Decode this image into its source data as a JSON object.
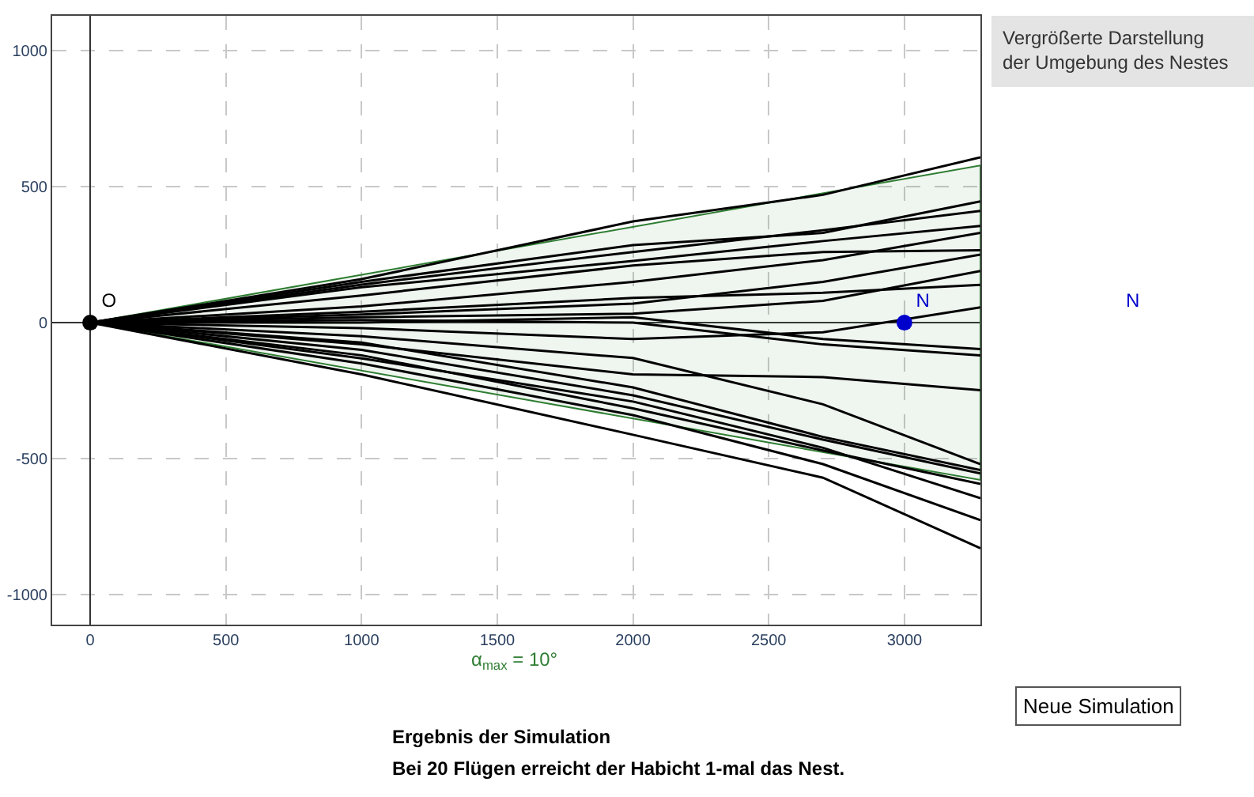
{
  "chart_data": [
    {
      "type": "line",
      "xlim": [
        -140,
        3280
      ],
      "ylim": [
        -1110,
        1128
      ],
      "xticks": [
        0,
        500,
        1000,
        1500,
        2000,
        2500,
        3000
      ],
      "yticks": [
        -1000,
        -500,
        0,
        500,
        1000
      ],
      "grid": true,
      "marker": "none",
      "line_style": "solid",
      "x": [
        0,
        1000,
        2000,
        2700,
        3280
      ],
      "series": [
        {
          "type": "line",
          "color": "#2e7d32",
          "x": [
            0,
            3280
          ],
          "values": [
            null,
            null
          ],
          "lower": [
            0,
            -578
          ],
          "upper": [
            0,
            578
          ]
        },
        {
          "color": "#000000",
          "values": [
            0,
            160,
            372,
            470,
            608
          ]
        },
        {
          "color": "#000000",
          "values": [
            0,
            150,
            285,
            330,
            446
          ]
        },
        {
          "color": "#000000",
          "values": [
            0,
            140,
            260,
            340,
            411
          ]
        },
        {
          "color": "#000000",
          "values": [
            0,
            130,
            227,
            300,
            356
          ]
        },
        {
          "color": "#000000",
          "values": [
            0,
            100,
            210,
            260,
            266
          ]
        },
        {
          "color": "#000000",
          "values": [
            0,
            60,
            150,
            230,
            330
          ]
        },
        {
          "color": "#000000",
          "values": [
            0,
            40,
            91,
            110,
            139
          ]
        },
        {
          "color": "#000000",
          "values": [
            0,
            20,
            33,
            80,
            190
          ]
        },
        {
          "color": "#000000",
          "values": [
            0,
            -20,
            -60,
            -35,
            56
          ]
        },
        {
          "color": "#000000",
          "values": [
            0,
            0,
            20,
            -60,
            -97
          ]
        },
        {
          "color": "#000000",
          "values": [
            0,
            -80,
            -190,
            -200,
            -248
          ]
        },
        {
          "color": "#000000",
          "values": [
            0,
            -73,
            -238,
            -420,
            -542
          ]
        },
        {
          "color": "#000000",
          "values": [
            0,
            -100,
            -267,
            -430,
            -554
          ]
        },
        {
          "color": "#000000",
          "values": [
            0,
            -120,
            -315,
            -470,
            -593
          ]
        },
        {
          "color": "#000000",
          "values": [
            0,
            -131,
            -290,
            -460,
            -645
          ]
        },
        {
          "color": "#000000",
          "values": [
            0,
            -150,
            -340,
            -520,
            -726
          ]
        },
        {
          "color": "#000000",
          "values": [
            0,
            -190,
            -412,
            -570,
            -829
          ]
        },
        {
          "color": "#000000",
          "values": [
            0,
            -50,
            -130,
            -300,
            -520
          ]
        },
        {
          "color": "#000000",
          "values": [
            0,
            10,
            0,
            -80,
            -120
          ]
        },
        {
          "color": "#000000",
          "values": [
            0,
            30,
            70,
            150,
            250
          ]
        },
        {
          "type": "scatter",
          "name": "O",
          "marker": "circle",
          "color": "#000000",
          "x": [
            0
          ],
          "values": [
            0
          ]
        },
        {
          "type": "scatter",
          "name": "N",
          "marker": "circle",
          "color": "#0000cc",
          "x": [
            3000
          ],
          "values": [
            0
          ]
        }
      ],
      "annotations": [
        "α$_{max}$ = 10°",
        "Neue Simulation",
        "Ergebnis der Simulation",
        "Bei 20 Flügen erreicht der Habicht 1-mal das Nest."
      ]
    },
    {
      "type": "other",
      "title": "Vergrößerte Darstellung\nder Umgebung des Nestes",
      "annotations": [
        "N"
      ]
    }
  ]
}
